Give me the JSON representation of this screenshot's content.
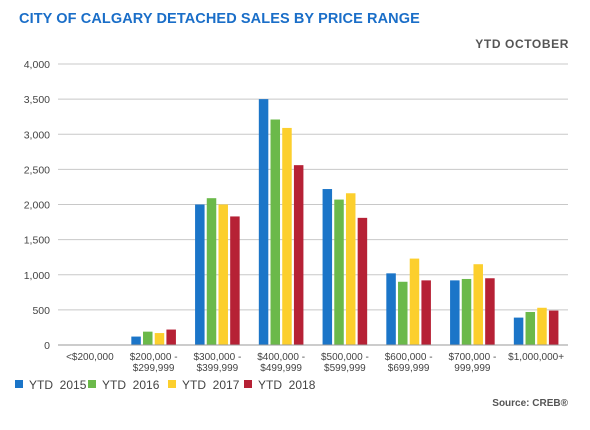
{
  "header": {
    "title": "CITY OF CALGARY DETACHED SALES BY PRICE RANGE",
    "subtitle": "YTD  OCTOBER"
  },
  "footer": {
    "source": "Source: CREB®"
  },
  "colors": {
    "YTD 2015": "#1b75c8",
    "YTD 2016": "#6bb94a",
    "YTD 2017": "#fccf2d",
    "YTD 2018": "#b62135",
    "grid": "#c8c8c8",
    "axis": "#999999"
  },
  "chart_data": {
    "type": "bar",
    "title": "CITY OF CALGARY DETACHED SALES BY PRICE RANGE",
    "subtitle": "YTD  OCTOBER",
    "xlabel": "",
    "ylabel": "",
    "ylim": [
      0,
      4000
    ],
    "yticks": [
      "0",
      "500",
      "1,000",
      "1,500",
      "2,000",
      "2,500",
      "3,000",
      "3,500",
      "4,000"
    ],
    "grid": true,
    "legend_position": "bottom",
    "categories": [
      [
        "<$200,000"
      ],
      [
        "$200,000 -",
        "$299,999"
      ],
      [
        "$300,000 -",
        "$399,999"
      ],
      [
        "$400,000 -",
        "$499,999"
      ],
      [
        "$500,000 -",
        "$599,999"
      ],
      [
        "$600,000 -",
        "$699,999"
      ],
      [
        "$700,000 -",
        "999,999"
      ],
      [
        "$1,000,000+"
      ]
    ],
    "series": [
      {
        "name": "YTD  2015",
        "values": [
          0,
          120,
          2000,
          3500,
          2220,
          1020,
          920,
          390
        ]
      },
      {
        "name": "YTD  2016",
        "values": [
          0,
          190,
          2090,
          3210,
          2070,
          900,
          940,
          470
        ]
      },
      {
        "name": "YTD  2017",
        "values": [
          0,
          170,
          2000,
          3090,
          2160,
          1230,
          1150,
          530
        ]
      },
      {
        "name": "YTD  2018",
        "values": [
          0,
          220,
          1830,
          2560,
          1810,
          920,
          950,
          490
        ]
      }
    ]
  }
}
